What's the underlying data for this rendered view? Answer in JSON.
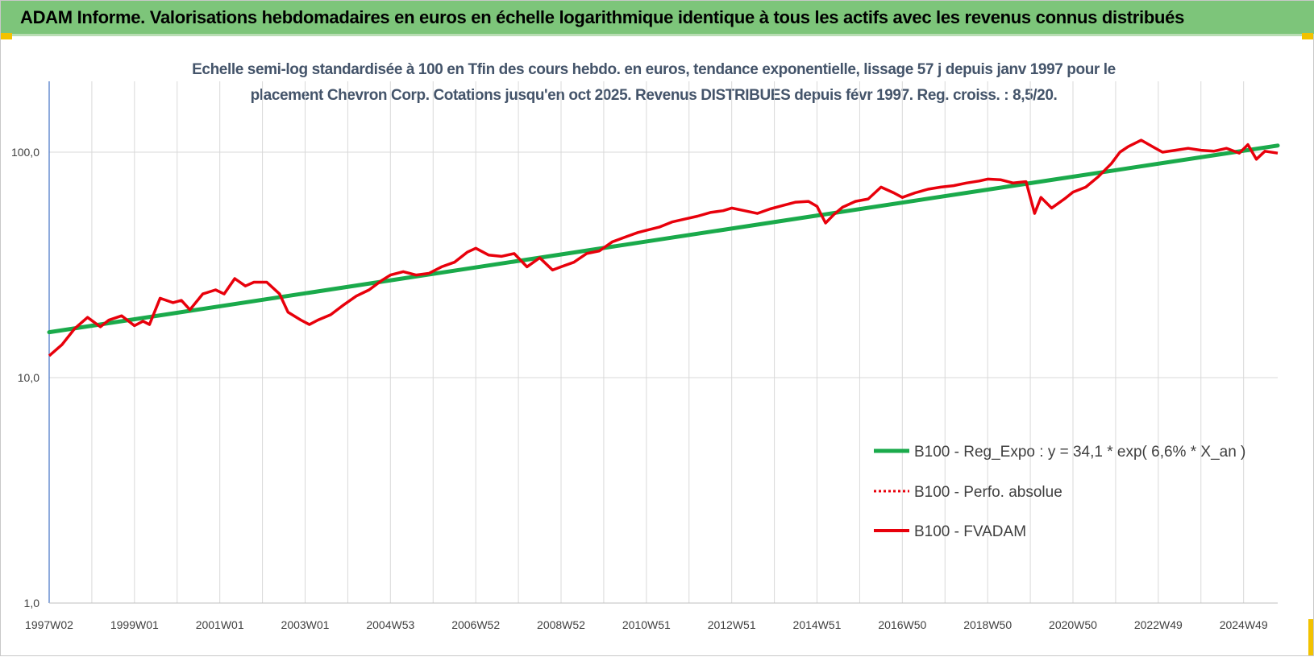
{
  "banner": {
    "title": "ADAM Informe. Valorisations hebdomadaires en euros en échelle logarithmique identique à tous les actifs avec les revenus connus distribués"
  },
  "colors": {
    "banner_bg": "#7dc57a",
    "trend": "#1aaa4b",
    "fvadam": "#e8000b",
    "perfo": "#e8000b",
    "grid": "#d9d9d9",
    "axis": "#4472c4"
  },
  "chart_data": {
    "type": "line",
    "title_line1": "Echelle semi-log standardisée à 100 en Tfin des cours hebdo. en euros, tendance exponentielle, lissage 57 j depuis janv 1997 pour le",
    "title_line2": "placement Chevron Corp. Cotations jusqu'en oct 2025.  Revenus DISTRIBUES depuis févr 1997.  Reg. croiss. : 8,5/20.",
    "y_scale": "log",
    "ylim": [
      1,
      180
    ],
    "y_ticks": [
      {
        "value": 1,
        "label": "1,0"
      },
      {
        "value": 10,
        "label": "10,0"
      },
      {
        "value": 100,
        "label": "100,0"
      }
    ],
    "xlim": [
      1997.0,
      2025.8
    ],
    "x_ticks": [
      {
        "x": 1997.0,
        "label": "1997W02"
      },
      {
        "x": 1999.0,
        "label": "1999W01"
      },
      {
        "x": 2001.0,
        "label": "2001W01"
      },
      {
        "x": 2003.0,
        "label": "2003W01"
      },
      {
        "x": 2005.0,
        "label": "2004W53"
      },
      {
        "x": 2007.0,
        "label": "2006W52"
      },
      {
        "x": 2009.0,
        "label": "2008W52"
      },
      {
        "x": 2011.0,
        "label": "2010W51"
      },
      {
        "x": 2013.0,
        "label": "2012W51"
      },
      {
        "x": 2015.0,
        "label": "2014W51"
      },
      {
        "x": 2017.0,
        "label": "2016W50"
      },
      {
        "x": 2019.0,
        "label": "2018W50"
      },
      {
        "x": 2021.0,
        "label": "2020W50"
      },
      {
        "x": 2023.0,
        "label": "2022W49"
      },
      {
        "x": 2025.0,
        "label": "2024W49"
      }
    ],
    "grid": true,
    "legend_position": "right-center",
    "series": [
      {
        "name": "B100 - Reg_Expo : y = 34,1 * exp( 6,6% *  X_an )",
        "style": "solid-thick",
        "color": "#1aaa4b",
        "x": [
          1997.0,
          2025.8
        ],
        "y": [
          15.9,
          107.0
        ]
      },
      {
        "name": "B100 - Perfo. absolue",
        "style": "dotted",
        "color": "#e8000b",
        "x": [],
        "y": []
      },
      {
        "name": "B100 - FVADAM",
        "style": "solid",
        "color": "#e8000b",
        "x": [
          1997.0,
          1997.3,
          1997.6,
          1997.9,
          1998.2,
          1998.4,
          1998.7,
          1999.0,
          1999.2,
          1999.35,
          1999.6,
          1999.9,
          2000.1,
          2000.3,
          2000.6,
          2000.9,
          2001.1,
          2001.35,
          2001.6,
          2001.8,
          2002.1,
          2002.4,
          2002.6,
          2002.9,
          2003.1,
          2003.3,
          2003.6,
          2003.9,
          2004.2,
          2004.5,
          2004.8,
          2005.0,
          2005.3,
          2005.6,
          2005.9,
          2006.2,
          2006.5,
          2006.8,
          2007.0,
          2007.3,
          2007.6,
          2007.9,
          2008.2,
          2008.5,
          2008.8,
          2009.0,
          2009.3,
          2009.6,
          2009.9,
          2010.2,
          2010.5,
          2010.8,
          2011.0,
          2011.3,
          2011.6,
          2011.9,
          2012.2,
          2012.5,
          2012.8,
          2013.0,
          2013.3,
          2013.6,
          2013.9,
          2014.2,
          2014.5,
          2014.8,
          2015.0,
          2015.2,
          2015.4,
          2015.6,
          2015.9,
          2016.2,
          2016.5,
          2016.8,
          2017.0,
          2017.3,
          2017.6,
          2017.9,
          2018.2,
          2018.5,
          2018.8,
          2019.0,
          2019.3,
          2019.6,
          2019.9,
          2020.1,
          2020.25,
          2020.5,
          2020.8,
          2021.0,
          2021.3,
          2021.6,
          2021.9,
          2022.1,
          2022.3,
          2022.6,
          2022.9,
          2023.1,
          2023.4,
          2023.7,
          2024.0,
          2024.3,
          2024.6,
          2024.9,
          2025.1,
          2025.3,
          2025.5,
          2025.8
        ],
        "y": [
          12.5,
          14.0,
          16.5,
          18.5,
          16.8,
          18.0,
          18.8,
          17.0,
          17.8,
          17.2,
          22.5,
          21.5,
          22.0,
          20.0,
          23.5,
          24.5,
          23.5,
          27.5,
          25.5,
          26.5,
          26.5,
          23.5,
          19.5,
          18.0,
          17.2,
          18.0,
          19.0,
          21.0,
          23.0,
          24.5,
          27.0,
          28.5,
          29.5,
          28.5,
          29.0,
          31.0,
          32.5,
          36.0,
          37.5,
          35.0,
          34.5,
          35.5,
          31.0,
          34.0,
          30.0,
          31.0,
          32.5,
          35.5,
          36.5,
          40.0,
          42.0,
          44.0,
          45.0,
          46.5,
          49.0,
          50.5,
          52.0,
          54.0,
          55.0,
          56.5,
          55.0,
          53.5,
          56.0,
          58.0,
          60.0,
          60.5,
          57.5,
          48.5,
          53.0,
          57.0,
          60.5,
          62.0,
          70.0,
          66.0,
          63.0,
          66.0,
          68.5,
          70.0,
          71.0,
          73.0,
          74.5,
          76.0,
          75.5,
          73.0,
          74.0,
          53.5,
          63.0,
          56.5,
          62.0,
          66.5,
          70.0,
          78.0,
          89.0,
          100.0,
          106.0,
          113.0,
          105.0,
          100.0,
          102.0,
          104.0,
          102.0,
          101.0,
          104.0,
          99.0,
          108.0,
          93.0,
          101.0,
          99.0
        ]
      }
    ]
  },
  "legend": {
    "items": [
      {
        "label": "B100 - Reg_Expo : y = 34,1 * exp( 6,6% *  X_an )"
      },
      {
        "label": "B100 - Perfo. absolue"
      },
      {
        "label": "B100 - FVADAM"
      }
    ]
  }
}
